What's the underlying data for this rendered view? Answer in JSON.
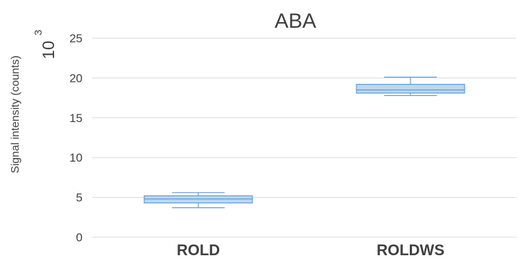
{
  "chart_data": {
    "type": "box",
    "title": "ABA",
    "ylabel": "Signal intensity (counts)",
    "y_multiplier": {
      "base": "10",
      "exponent": "3"
    },
    "categories": [
      "ROLD",
      "ROLDWS"
    ],
    "ylim": [
      0,
      25
    ],
    "yticks": [
      0,
      5,
      10,
      15,
      20,
      25
    ],
    "grid": true,
    "colors": {
      "box_fill": "#bdd7ee",
      "box_stroke": "#5b9bd5",
      "grid": "#d9d9d9"
    },
    "boxes": [
      {
        "category": "ROLD",
        "min": 3.7,
        "q1": 4.3,
        "median": 4.8,
        "q3": 5.2,
        "max": 5.6
      },
      {
        "category": "ROLDWS",
        "min": 17.8,
        "q1": 18.1,
        "median": 18.5,
        "q3": 19.2,
        "max": 20.1
      }
    ]
  }
}
